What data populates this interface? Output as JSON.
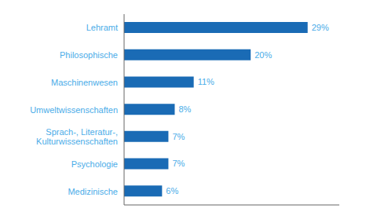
{
  "chart_data": {
    "type": "bar",
    "orientation": "horizontal",
    "categories": [
      "Medizinische",
      "Psychologie",
      "Sprach-, Literatur-,\nKulturwissenschaften",
      "Umweltwissenschaften",
      "Maschinenwesen",
      "Philosophische",
      "Lehramt"
    ],
    "values": [
      6,
      7,
      7,
      8,
      11,
      20,
      29
    ],
    "value_labels": [
      "6%",
      "7%",
      "7%",
      "8%",
      "11%",
      "20%",
      "29%"
    ],
    "color": "#1a6bb5",
    "xlim": [
      0,
      34
    ],
    "grid": false,
    "data_labels": true,
    "tick_labels": "y"
  }
}
